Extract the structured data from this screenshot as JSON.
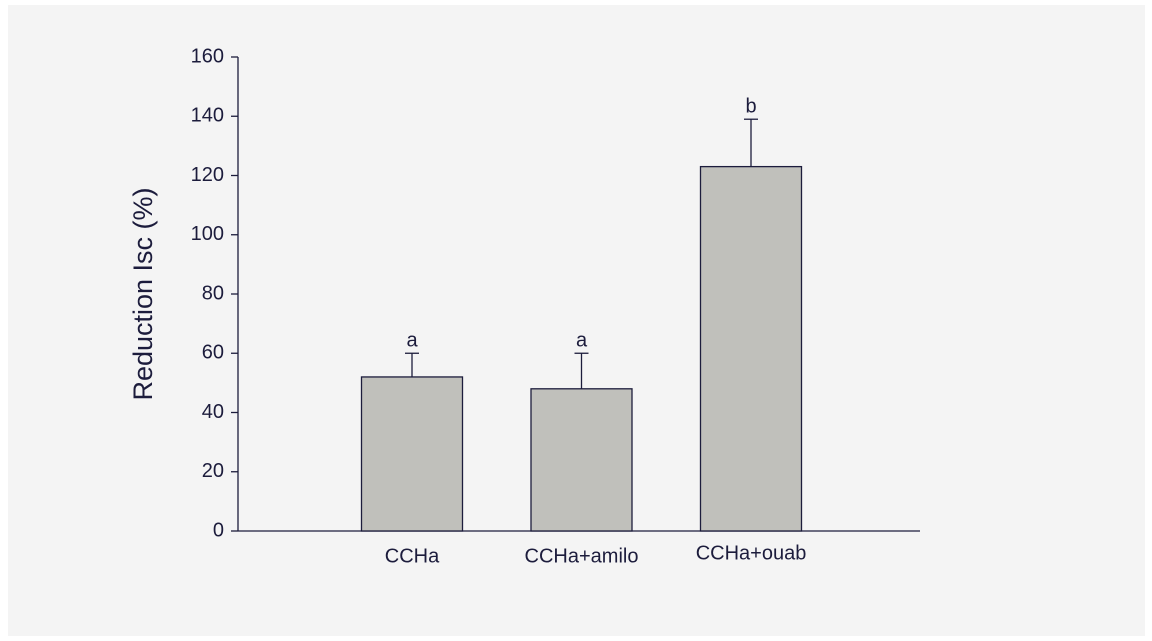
{
  "chart_data": {
    "type": "bar",
    "ylabel": "Reduction Isc (%)",
    "categories": [
      "CCHa",
      "CCHa+amilo",
      "CCHa+ouab"
    ],
    "values": [
      52,
      48,
      123
    ],
    "errors": [
      8,
      12,
      16
    ],
    "annotations": [
      "a",
      "a",
      "b"
    ],
    "color": "#c0c0bb",
    "ylim": [
      0,
      160
    ],
    "yticks": [
      0,
      20,
      40,
      60,
      80,
      100,
      120,
      140,
      160
    ],
    "grid": false
  }
}
